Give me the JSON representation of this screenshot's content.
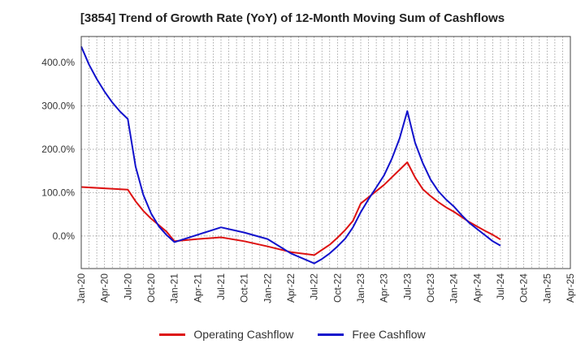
{
  "chart_data": {
    "type": "line",
    "title": "[3854]  Trend of Growth Rate (YoY) of 12-Month Moving Sum of Cashflows",
    "xlabel": "",
    "ylabel": "",
    "x_ticks": [
      "Jan-20",
      "Apr-20",
      "Jul-20",
      "Oct-20",
      "Jan-21",
      "Apr-21",
      "Jul-21",
      "Oct-21",
      "Jan-22",
      "Apr-22",
      "Jul-22",
      "Oct-22",
      "Jan-23",
      "Apr-23",
      "Jul-23",
      "Oct-23",
      "Jan-24",
      "Apr-24",
      "Jul-24",
      "Oct-24",
      "Jan-25",
      "Apr-25"
    ],
    "y_ticks": [
      0,
      100,
      200,
      300,
      400
    ],
    "y_tick_labels": [
      "0.0%",
      "100.0%",
      "200.0%",
      "300.0%",
      "400.0%"
    ],
    "ylim": [
      -75,
      460
    ],
    "grid": true,
    "legend_position": "bottom",
    "series": [
      {
        "name": "Operating Cashflow",
        "color": "#dd1111",
        "points": [
          [
            "Jan-20",
            113
          ],
          [
            "Apr-20",
            110
          ],
          [
            "Jul-20",
            107
          ],
          [
            "Aug-20",
            80
          ],
          [
            "Sep-20",
            58
          ],
          [
            "Oct-20",
            40
          ],
          [
            "Nov-20",
            25
          ],
          [
            "Dec-20",
            10
          ],
          [
            "Jan-21",
            -12
          ],
          [
            "Apr-21",
            -7
          ],
          [
            "Jul-21",
            -3
          ],
          [
            "Oct-21",
            -12
          ],
          [
            "Jan-22",
            -24
          ],
          [
            "Apr-22",
            -37
          ],
          [
            "Jul-22",
            -44
          ],
          [
            "Aug-22",
            -32
          ],
          [
            "Sep-22",
            -20
          ],
          [
            "Oct-22",
            -4
          ],
          [
            "Nov-22",
            14
          ],
          [
            "Dec-22",
            35
          ],
          [
            "Jan-23",
            75
          ],
          [
            "Apr-23",
            118
          ],
          [
            "Jul-23",
            170
          ],
          [
            "Aug-23",
            135
          ],
          [
            "Sep-23",
            108
          ],
          [
            "Oct-23",
            92
          ],
          [
            "Nov-23",
            78
          ],
          [
            "Dec-23",
            66
          ],
          [
            "Jan-24",
            56
          ],
          [
            "Feb-24",
            44
          ],
          [
            "Mar-24",
            32
          ],
          [
            "Apr-24",
            22
          ],
          [
            "May-24",
            12
          ],
          [
            "Jun-24",
            3
          ],
          [
            "Jul-24",
            -8
          ]
        ]
      },
      {
        "name": "Free Cashflow",
        "color": "#1111cc",
        "points": [
          [
            "Jan-20",
            437
          ],
          [
            "Feb-20",
            395
          ],
          [
            "Mar-20",
            362
          ],
          [
            "Apr-20",
            333
          ],
          [
            "May-20",
            308
          ],
          [
            "Jun-20",
            287
          ],
          [
            "Jul-20",
            270
          ],
          [
            "Aug-20",
            160
          ],
          [
            "Sep-20",
            95
          ],
          [
            "Oct-20",
            52
          ],
          [
            "Nov-20",
            22
          ],
          [
            "Dec-20",
            2
          ],
          [
            "Jan-21",
            -14
          ],
          [
            "Apr-21",
            3
          ],
          [
            "Jul-21",
            20
          ],
          [
            "Oct-21",
            8
          ],
          [
            "Jan-22",
            -7
          ],
          [
            "Apr-22",
            -40
          ],
          [
            "Jul-22",
            -63
          ],
          [
            "Aug-22",
            -53
          ],
          [
            "Sep-22",
            -40
          ],
          [
            "Oct-22",
            -24
          ],
          [
            "Nov-22",
            -6
          ],
          [
            "Dec-22",
            20
          ],
          [
            "Jan-23",
            55
          ],
          [
            "Feb-23",
            85
          ],
          [
            "Mar-23",
            112
          ],
          [
            "Apr-23",
            140
          ],
          [
            "May-23",
            178
          ],
          [
            "Jun-23",
            225
          ],
          [
            "Jul-23",
            288
          ],
          [
            "Aug-23",
            215
          ],
          [
            "Sep-23",
            168
          ],
          [
            "Oct-23",
            130
          ],
          [
            "Nov-23",
            103
          ],
          [
            "Dec-23",
            84
          ],
          [
            "Jan-24",
            68
          ],
          [
            "Feb-24",
            48
          ],
          [
            "Mar-24",
            30
          ],
          [
            "Apr-24",
            16
          ],
          [
            "May-24",
            2
          ],
          [
            "Jun-24",
            -12
          ],
          [
            "Jul-24",
            -22
          ]
        ]
      }
    ]
  }
}
